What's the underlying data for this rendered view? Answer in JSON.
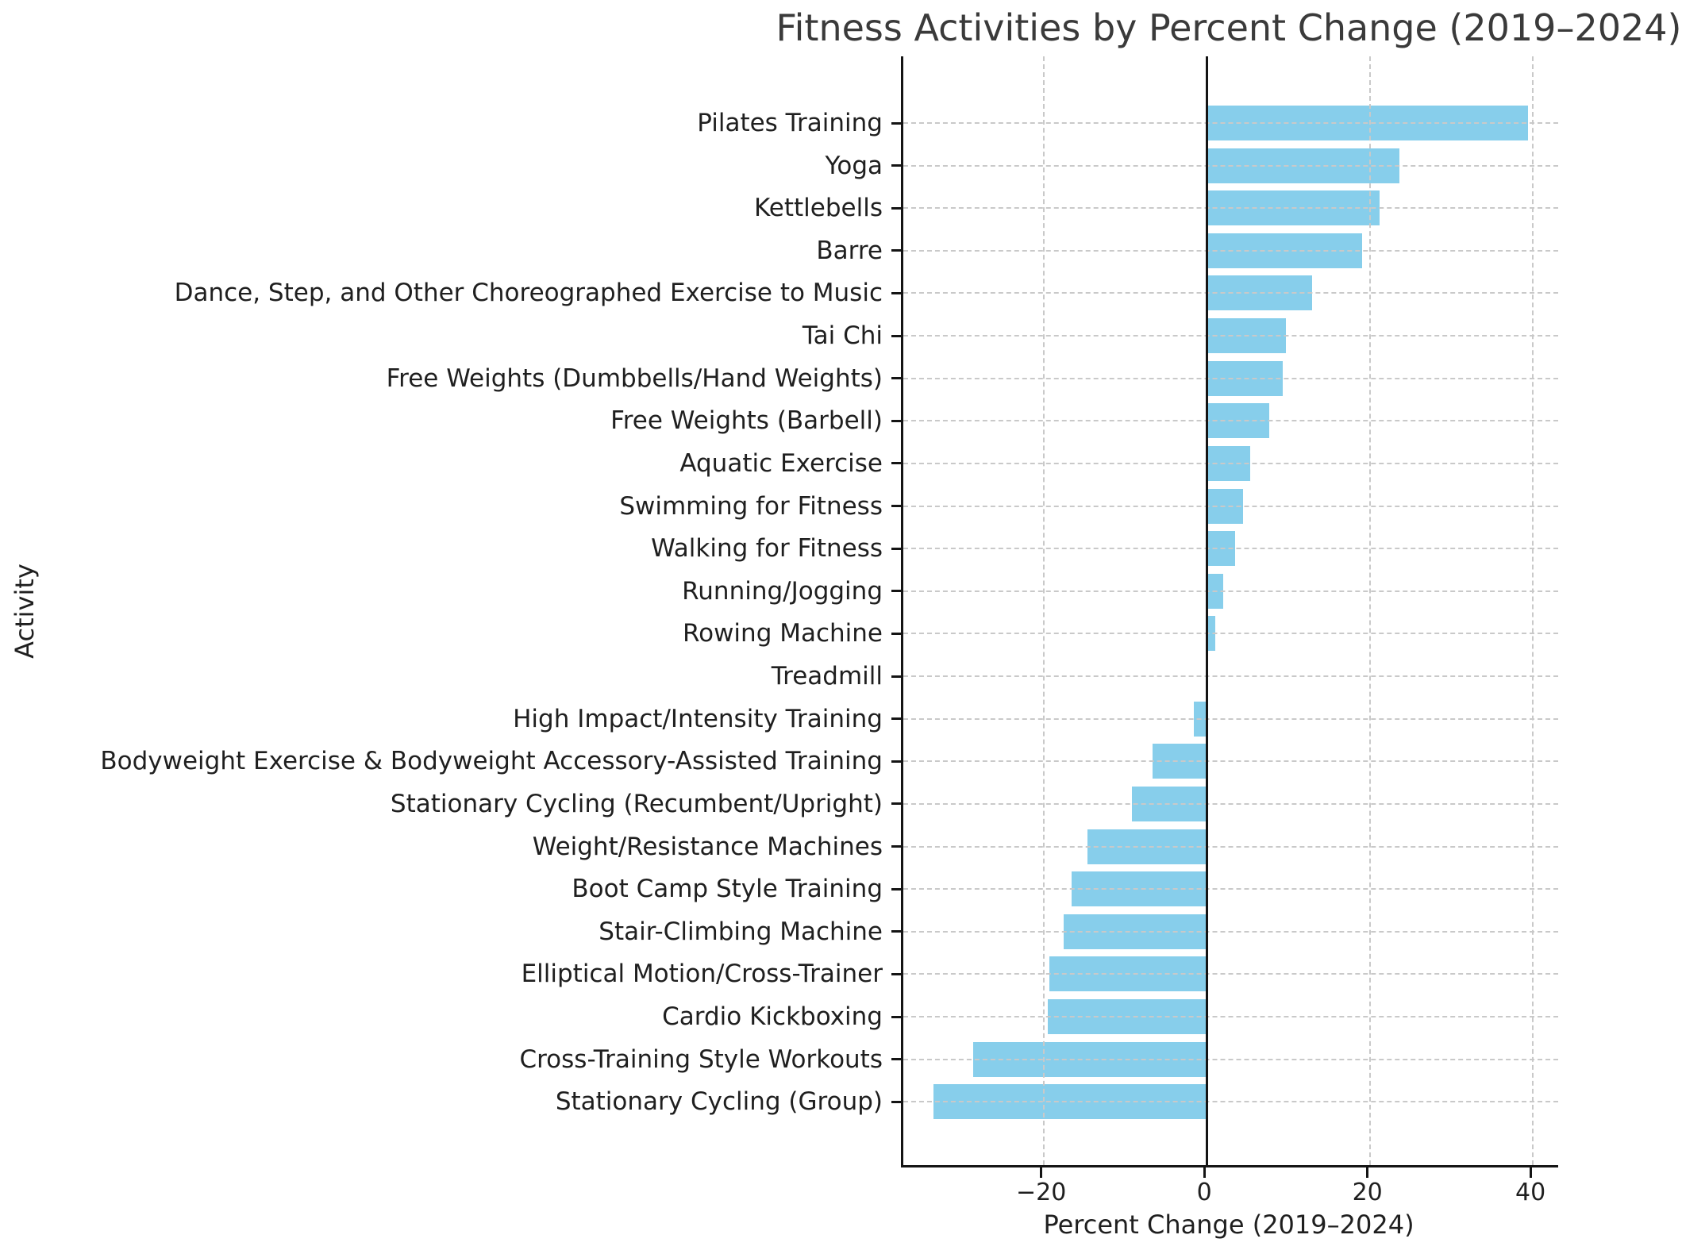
{
  "chart_data": {
    "type": "bar",
    "orientation": "horizontal",
    "title": "Fitness Activities by Percent Change (2019–2024)",
    "xlabel": "Percent Change (2019–2024)",
    "ylabel": "Activity",
    "categories": [
      "Pilates Training",
      "Yoga",
      "Kettlebells",
      "Barre",
      "Dance, Step, and Other Choreographed Exercise to Music",
      "Tai Chi",
      "Free Weights (Dumbbells/Hand Weights)",
      "Free Weights (Barbell)",
      "Aquatic Exercise",
      "Swimming for Fitness",
      "Walking for Fitness",
      "Running/Jogging",
      "Rowing Machine",
      "Treadmill",
      "High Impact/Intensity Training",
      "Bodyweight Exercise & Bodyweight Accessory-Assisted Training",
      "Stationary Cycling (Recumbent/Upright)",
      "Weight/Resistance Machines",
      "Boot Camp Style Training",
      "Stair-Climbing Machine",
      "Elliptical Motion/Cross-Trainer",
      "Cardio Kickboxing",
      "Cross-Training Style Workouts",
      "Stationary Cycling (Group)"
    ],
    "values": [
      39.4,
      23.6,
      21.2,
      19.1,
      12.9,
      9.7,
      9.3,
      7.7,
      5.3,
      4.5,
      3.5,
      2.0,
      1.1,
      0.0,
      -1.6,
      -6.6,
      -9.2,
      -14.6,
      -16.6,
      -17.5,
      -19.3,
      -19.5,
      -28.6,
      -33.5
    ],
    "xticks": [
      -20,
      0,
      20,
      40
    ],
    "xtick_labels": [
      "−20",
      "0",
      "20",
      "40"
    ],
    "xlim": [
      -37.2,
      43.1
    ],
    "bar_color": "#87ceeb",
    "grid": true,
    "grid_style": "dashed",
    "zero_line": true,
    "legend": "none"
  },
  "colors": {
    "bar": "#87ceeb",
    "grid": "#c9c9c9",
    "axis": "#141414",
    "title_text": "#3a3a3a",
    "label_text": "#1f1f1f",
    "background": "#ffffff"
  }
}
